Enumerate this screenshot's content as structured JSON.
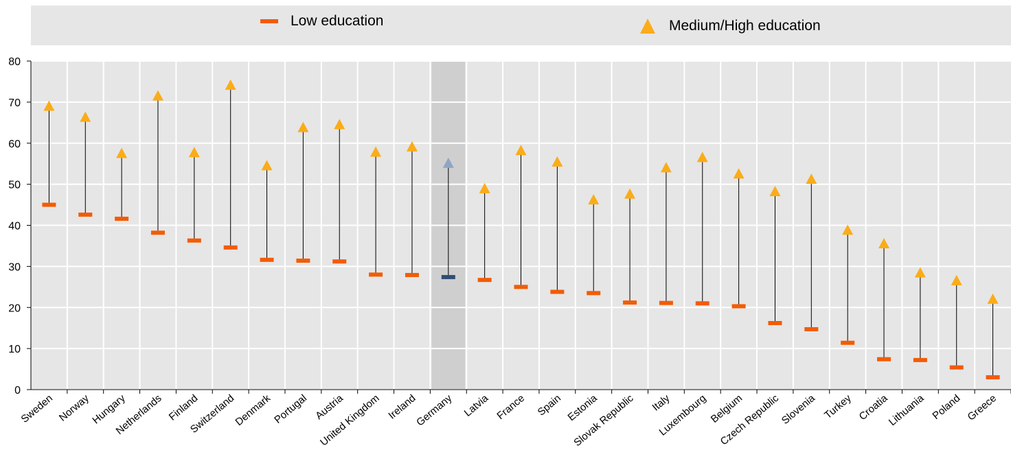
{
  "legend": {
    "low_label": "Low education",
    "high_label": "Medium/High education"
  },
  "colors": {
    "low": "#f25c05",
    "high": "#fbac18",
    "highlight_low": "#2f4e74",
    "highlight_high": "#8fa6c2",
    "highlight_band": "#cfcfcf",
    "plot_background": "#e6e6e6",
    "gridline": "#ffffff",
    "connector": "#000000"
  },
  "chart_data": {
    "type": "dot",
    "categories": [
      "Sweden",
      "Norway",
      "Hungary",
      "Netherlands",
      "Finland",
      "Switzerland",
      "Denmark",
      "Portugal",
      "Austria",
      "United Kingdom",
      "Ireland",
      "Germany",
      "Latvia",
      "France",
      "Spain",
      "Estonia",
      "Slovak Republic",
      "Italy",
      "Luxembourg",
      "Belgium",
      "Czech Republic",
      "Slovenia",
      "Turkey",
      "Croatia",
      "Lithuania",
      "Poland",
      "Greece"
    ],
    "series": [
      {
        "name": "Low education",
        "marker": "dash",
        "values": [
          45.0,
          42.6,
          41.6,
          38.2,
          36.3,
          34.6,
          31.6,
          31.4,
          31.2,
          28.0,
          27.9,
          27.4,
          26.7,
          25.0,
          23.8,
          23.5,
          21.2,
          21.1,
          21.0,
          20.3,
          16.2,
          14.7,
          11.4,
          7.4,
          7.2,
          5.4,
          3.0
        ]
      },
      {
        "name": "Medium/High education",
        "marker": "triangle",
        "values": [
          68.9,
          66.2,
          57.4,
          71.4,
          57.6,
          74.0,
          54.4,
          63.7,
          64.4,
          57.7,
          59.0,
          55.0,
          48.8,
          58.1,
          55.3,
          46.1,
          47.5,
          53.9,
          56.4,
          52.4,
          48.1,
          51.1,
          38.7,
          35.4,
          28.3,
          26.4,
          21.9
        ]
      }
    ],
    "highlight_category": "Germany",
    "y_ticks": [
      "0",
      "10",
      "20",
      "30",
      "40",
      "50",
      "60",
      "70",
      "80"
    ],
    "ylim": [
      0,
      80
    ],
    "grid": true,
    "legend_position": "top"
  }
}
